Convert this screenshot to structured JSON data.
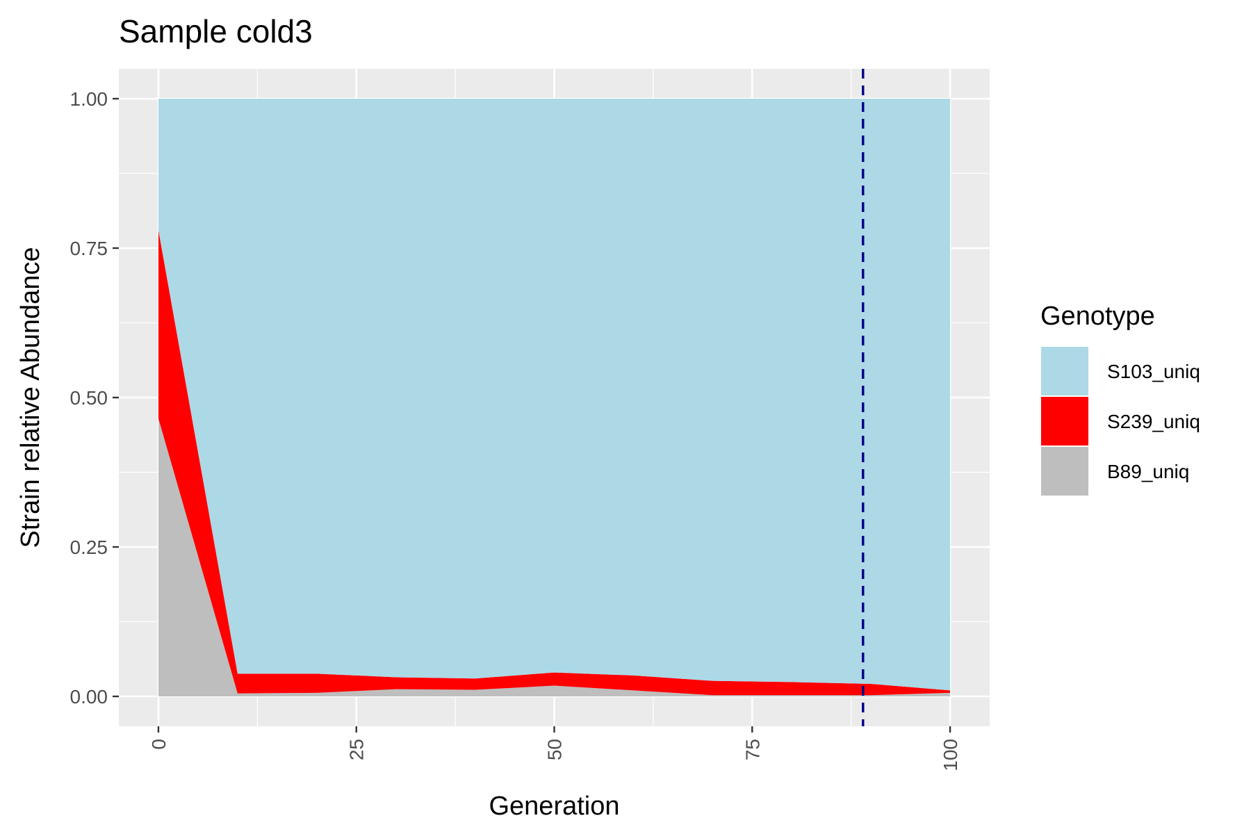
{
  "chart_data": {
    "type": "area",
    "stacked": true,
    "title": "Sample cold3",
    "xlabel": "Generation",
    "ylabel": "Strain relative Abundance",
    "xlim": [
      -5,
      105
    ],
    "ylim": [
      -0.05,
      1.05
    ],
    "x_ticks": [
      0,
      25,
      50,
      75,
      100
    ],
    "x_tick_labels": [
      "0",
      "25",
      "50",
      "75",
      "100"
    ],
    "y_ticks": [
      0,
      0.25,
      0.5,
      0.75,
      1.0
    ],
    "y_tick_labels": [
      "0.00",
      "0.25",
      "0.50",
      "0.75",
      "1.00"
    ],
    "grid": true,
    "x": [
      0,
      10,
      20,
      30,
      40,
      50,
      60,
      70,
      80,
      90,
      100
    ],
    "series": [
      {
        "name": "B89_uniq",
        "color": "#bebebe",
        "values": [
          0.465,
          0.005,
          0.006,
          0.012,
          0.011,
          0.018,
          0.01,
          0.002,
          0.002,
          0.002,
          0.006
        ]
      },
      {
        "name": "S239_uniq",
        "color": "#ff0000",
        "values": [
          0.315,
          0.033,
          0.032,
          0.02,
          0.019,
          0.022,
          0.025,
          0.024,
          0.022,
          0.019,
          0.004
        ]
      },
      {
        "name": "S103_uniq",
        "color": "#add8e6",
        "values": [
          0.22,
          0.962,
          0.962,
          0.968,
          0.97,
          0.96,
          0.965,
          0.974,
          0.976,
          0.979,
          0.99
        ]
      }
    ],
    "stack_order_bottom_to_top": [
      "B89_uniq",
      "S239_uniq",
      "S103_uniq"
    ],
    "vline": {
      "x": 89,
      "style": "dashed",
      "color": "#00008b"
    },
    "legend": {
      "title": "Genotype",
      "position": "right",
      "entries": [
        "S103_uniq",
        "S239_uniq",
        "B89_uniq"
      ]
    },
    "panel_background": "#ebebeb",
    "grid_color": "#ffffff"
  }
}
